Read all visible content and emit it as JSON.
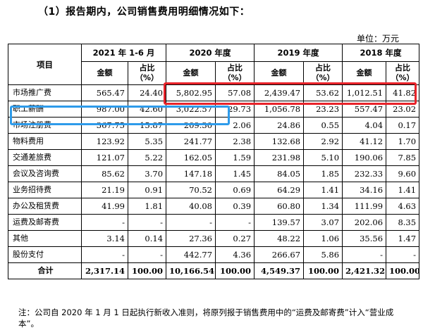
{
  "heading": "（1）报告期内，公司销售费用明细情况如下：",
  "unit": "单位：万元",
  "table": {
    "item_header": "项目",
    "periods": [
      "2021 年 1-6 月",
      "2020 年度",
      "2019 年度",
      "2018 年度"
    ],
    "amount_label": "金额",
    "ratio_label": "占比（%）",
    "rows": [
      {
        "item": "市场推广费",
        "values": [
          "565.47",
          "24.40",
          "5,802.95",
          "57.08",
          "2,439.47",
          "53.62",
          "1,012.51",
          "41.82"
        ]
      },
      {
        "item": "职工薪酬",
        "values": [
          "987.00",
          "42.60",
          "3,022.57",
          "29.73",
          "1,056.78",
          "23.23",
          "557.47",
          "23.02"
        ]
      },
      {
        "item": "市场注册费",
        "values": [
          "367.75",
          "15.87",
          "209.30",
          "2.06",
          "24.86",
          "0.55",
          "4.04",
          "0.17"
        ]
      },
      {
        "item": "物料费用",
        "values": [
          "123.92",
          "5.35",
          "241.77",
          "2.38",
          "132.68",
          "2.92",
          "41.12",
          "1.70"
        ]
      },
      {
        "item": "交通差旅费",
        "values": [
          "121.07",
          "5.22",
          "162.05",
          "1.59",
          "231.98",
          "5.10",
          "190.06",
          "7.85"
        ]
      },
      {
        "item": "会议及咨询费",
        "values": [
          "85.62",
          "3.70",
          "147.18",
          "1.45",
          "84.05",
          "1.85",
          "232.33",
          "9.60"
        ]
      },
      {
        "item": "业务招待费",
        "values": [
          "21.19",
          "0.91",
          "70.52",
          "0.69",
          "64.29",
          "1.41",
          "34.16",
          "1.41"
        ]
      },
      {
        "item": "办公及租赁费",
        "values": [
          "41.99",
          "1.81",
          "40.08",
          "0.39",
          "60.80",
          "1.34",
          "111.99",
          "4.63"
        ]
      },
      {
        "item": "运费及邮寄费",
        "values": [
          "-",
          "-",
          "-",
          "-",
          "139.57",
          "3.07",
          "202.06",
          "8.35"
        ]
      },
      {
        "item": "其他",
        "values": [
          "3.14",
          "0.14",
          "27.36",
          "0.27",
          "48.22",
          "1.06",
          "35.56",
          "1.47"
        ]
      },
      {
        "item": "股份支付",
        "values": [
          "-",
          "-",
          "442.77",
          "4.36",
          "266.67",
          "5.86",
          "-",
          "-"
        ]
      }
    ],
    "total": {
      "item": "合计",
      "values": [
        "2,317.14",
        "100.00",
        "10,166.54",
        "100.00",
        "4,549.37",
        "100.00",
        "2,421.32",
        "100.00"
      ]
    }
  },
  "note": "注：公司自 2020 年 1 月 1 日起执行新收入准则，将原列报于销售费用中的“运费及邮寄费”计入“营业成本”。",
  "highlights": {
    "red": "#e8232a",
    "blue": "#2e9bea"
  }
}
